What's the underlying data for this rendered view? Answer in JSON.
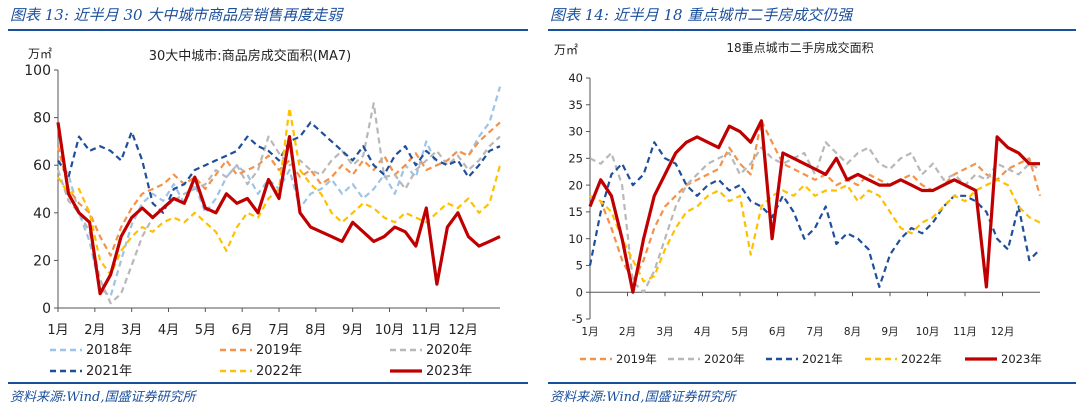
{
  "left": {
    "figure_title": "图表 13:  近半月 30 大中城市商品房销售再度走弱",
    "source": "资料来源:Wind,国盛证券研究所"
  },
  "right": {
    "figure_title": "图表 14:  近半月 18 重点城市二手房成交仍强",
    "source": "资料来源:Wind,国盛证券研究所"
  },
  "chart_data": [
    {
      "type": "line",
      "title": "30大中城市:商品房成交面积(MA7)",
      "ylabel": "万㎡",
      "ylim": [
        0,
        100
      ],
      "yticks": [
        0,
        20,
        40,
        60,
        80,
        100
      ],
      "xticks": [
        "1月",
        "2月",
        "3月",
        "4月",
        "5月",
        "6月",
        "7月",
        "8月",
        "9月",
        "10月",
        "11月",
        "12月"
      ],
      "legend_position": "bottom",
      "series": [
        {
          "name": "2018年",
          "color": "#9dc3e6",
          "dash": "dashed",
          "values": [
            62,
            56,
            40,
            28,
            8,
            5,
            20,
            35,
            44,
            48,
            45,
            52,
            44,
            52,
            40,
            46,
            55,
            60,
            56,
            48,
            54,
            50,
            58,
            42,
            48,
            50,
            54,
            48,
            52,
            46,
            50,
            56,
            48,
            60,
            55,
            70,
            60,
            62,
            66,
            64,
            72,
            78,
            93
          ]
        },
        {
          "name": "2019年",
          "color": "#f4924a",
          "dash": "dashed",
          "values": [
            68,
            50,
            44,
            40,
            30,
            22,
            34,
            42,
            48,
            50,
            52,
            56,
            52,
            55,
            50,
            56,
            62,
            56,
            58,
            60,
            64,
            58,
            62,
            55,
            58,
            52,
            55,
            60,
            56,
            62,
            58,
            64,
            56,
            60,
            65,
            58,
            60,
            62,
            66,
            64,
            70,
            74,
            78
          ]
        },
        {
          "name": "2020年",
          "color": "#b8b8b8",
          "dash": "dashed",
          "values": [
            58,
            45,
            40,
            32,
            12,
            2,
            6,
            18,
            30,
            38,
            42,
            45,
            48,
            50,
            52,
            58,
            55,
            60,
            52,
            58,
            72,
            65,
            60,
            62,
            58,
            56,
            62,
            66,
            60,
            64,
            86,
            55,
            56,
            50,
            58,
            62,
            66,
            60,
            64,
            58,
            62,
            68,
            72
          ]
        },
        {
          "name": "2021年",
          "color": "#1f4e9a",
          "dash": "dashed",
          "values": [
            62,
            55,
            72,
            66,
            68,
            66,
            62,
            74,
            62,
            44,
            40,
            50,
            52,
            58,
            60,
            62,
            64,
            66,
            72,
            68,
            66,
            62,
            70,
            72,
            78,
            74,
            70,
            66,
            62,
            68,
            60,
            56,
            64,
            68,
            60,
            66,
            62,
            60,
            62,
            55,
            60,
            66,
            68
          ]
        },
        {
          "name": "2022年",
          "color": "#ffc000",
          "dash": "dashed",
          "values": [
            55,
            48,
            50,
            40,
            20,
            14,
            24,
            30,
            34,
            32,
            36,
            38,
            36,
            40,
            36,
            32,
            24,
            34,
            40,
            38,
            46,
            50,
            84,
            58,
            52,
            48,
            40,
            36,
            40,
            44,
            42,
            38,
            36,
            40,
            38,
            36,
            40,
            44,
            42,
            46,
            40,
            44,
            60
          ]
        },
        {
          "name": "2023年",
          "color": "#c00000",
          "dash": "solid",
          "values": [
            78,
            48,
            40,
            36,
            6,
            14,
            30,
            38,
            42,
            38,
            42,
            46,
            44,
            55,
            42,
            40,
            48,
            44,
            46,
            40,
            54,
            46,
            72,
            40,
            34,
            32,
            30,
            28,
            36,
            32,
            28,
            30,
            34,
            32,
            26,
            42,
            10,
            34,
            40,
            30,
            26,
            28,
            30
          ]
        }
      ]
    },
    {
      "type": "line",
      "title": "18重点城市二手房成交面积",
      "ylabel": "万㎡",
      "ylim": [
        -5,
        40
      ],
      "yticks": [
        -5,
        0,
        5,
        10,
        15,
        20,
        25,
        30,
        35,
        40
      ],
      "xticks": [
        "1月",
        "2月",
        "3月",
        "4月",
        "5月",
        "6月",
        "7月",
        "8月",
        "9月",
        "10月",
        "11月",
        "12月"
      ],
      "legend_position": "bottom",
      "series": [
        {
          "name": "2019年",
          "color": "#f4924a",
          "dash": "dashed",
          "values": [
            18,
            17,
            12,
            6,
            2,
            6,
            12,
            16,
            18,
            20,
            21,
            22,
            23,
            27,
            24,
            22,
            32,
            28,
            24,
            23,
            22,
            21,
            22,
            20,
            21,
            20,
            22,
            21,
            20,
            21,
            22,
            20,
            19,
            20,
            22,
            23,
            24,
            22,
            21,
            23,
            24,
            25,
            18
          ]
        },
        {
          "name": "2020年",
          "color": "#b8b8b8",
          "dash": "dashed",
          "values": [
            25,
            24,
            26,
            20,
            2,
            0,
            4,
            10,
            16,
            20,
            22,
            24,
            25,
            26,
            22,
            24,
            27,
            25,
            24,
            25,
            26,
            22,
            28,
            26,
            24,
            26,
            27,
            24,
            23,
            25,
            26,
            22,
            24,
            21,
            22,
            20,
            22,
            21,
            24,
            23,
            22,
            24,
            23
          ]
        },
        {
          "name": "2021年",
          "color": "#1f4e9a",
          "dash": "dashed",
          "values": [
            5,
            15,
            22,
            24,
            20,
            22,
            28,
            25,
            24,
            20,
            18,
            20,
            21,
            19,
            20,
            17,
            16,
            14,
            18,
            15,
            10,
            12,
            16,
            9,
            11,
            10,
            8,
            1,
            7,
            10,
            12,
            11,
            13,
            16,
            18,
            18,
            17,
            15,
            10,
            8,
            16,
            6,
            8
          ]
        },
        {
          "name": "2022年",
          "color": "#ffc000",
          "dash": "dashed",
          "values": [
            18,
            17,
            15,
            10,
            6,
            2,
            3,
            8,
            12,
            15,
            16,
            18,
            19,
            17,
            18,
            7,
            16,
            18,
            19,
            18,
            20,
            18,
            19,
            19,
            20,
            17,
            19,
            18,
            15,
            12,
            11,
            13,
            14,
            16,
            18,
            17,
            19,
            20,
            21,
            20,
            16,
            14,
            13
          ]
        },
        {
          "name": "2023年",
          "color": "#c00000",
          "dash": "solid",
          "values": [
            16,
            21,
            18,
            10,
            0,
            10,
            18,
            22,
            26,
            28,
            29,
            28,
            27,
            31,
            30,
            28,
            32,
            10,
            26,
            25,
            24,
            23,
            22,
            25,
            21,
            22,
            21,
            20,
            20,
            21,
            20,
            19,
            19,
            20,
            21,
            20,
            19,
            1,
            29,
            27,
            26,
            24,
            24
          ]
        }
      ]
    }
  ]
}
